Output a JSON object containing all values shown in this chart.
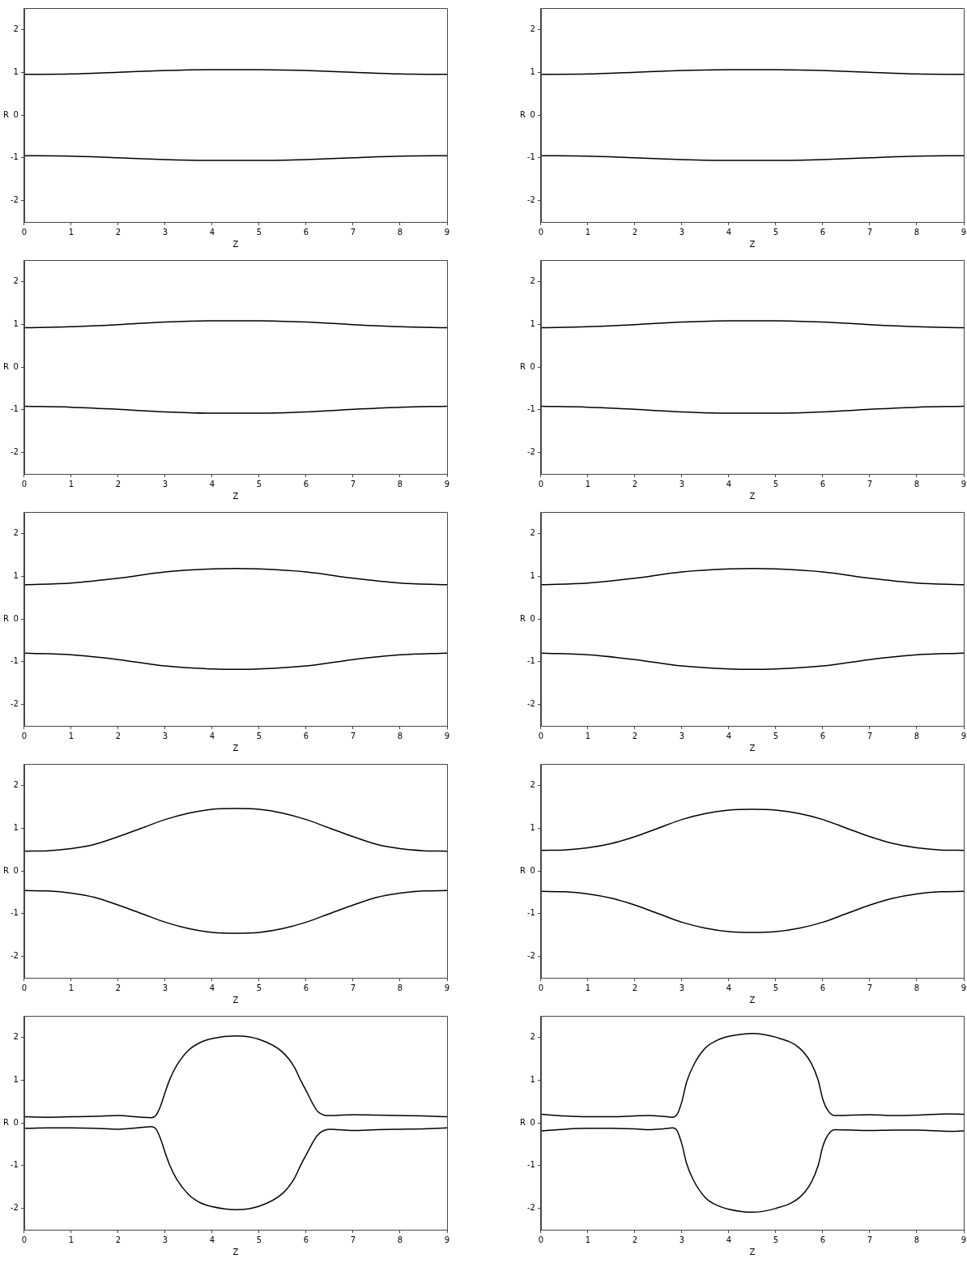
{
  "chart_data": [
    {
      "type": "line",
      "xlabel": "Z",
      "ylabel": "R",
      "xlim": [
        0,
        9
      ],
      "ylim": [
        -2.5,
        2.5
      ],
      "xticks": [
        0,
        1,
        2,
        3,
        4,
        5,
        6,
        7,
        8,
        9
      ],
      "yticks": [
        -2,
        -1,
        0,
        1,
        2
      ],
      "grid": false,
      "legend": false,
      "marker": "none",
      "line_style": "solid",
      "x": [
        0,
        1,
        2,
        3,
        4,
        4.5,
        5,
        6,
        7,
        8,
        9
      ],
      "series": [
        {
          "color": "#000000",
          "values": [
            0.95,
            0.96,
            1.0,
            1.04,
            1.06,
            1.06,
            1.06,
            1.04,
            1.0,
            0.96,
            0.95
          ]
        },
        {
          "color": "#000000",
          "values": [
            -0.95,
            -0.96,
            -1.0,
            -1.04,
            -1.06,
            -1.06,
            -1.06,
            -1.04,
            -1.0,
            -0.96,
            -0.95
          ]
        }
      ]
    },
    {
      "type": "line",
      "xlabel": "Z",
      "ylabel": "R",
      "xlim": [
        0,
        9
      ],
      "ylim": [
        -2.5,
        2.5
      ],
      "xticks": [
        0,
        1,
        2,
        3,
        4,
        5,
        6,
        7,
        8,
        9
      ],
      "yticks": [
        -2,
        -1,
        0,
        1,
        2
      ],
      "grid": false,
      "legend": false,
      "marker": "none",
      "line_style": "solid",
      "x": [
        0,
        1,
        2,
        3,
        4,
        4.5,
        5,
        6,
        7,
        8,
        9
      ],
      "series": [
        {
          "color": "#000000",
          "values": [
            0.95,
            0.96,
            1.0,
            1.04,
            1.06,
            1.06,
            1.06,
            1.04,
            1.0,
            0.96,
            0.95
          ]
        },
        {
          "color": "#000000",
          "values": [
            -0.95,
            -0.96,
            -1.0,
            -1.04,
            -1.06,
            -1.06,
            -1.06,
            -1.04,
            -1.0,
            -0.96,
            -0.95
          ]
        }
      ]
    },
    {
      "type": "line",
      "xlabel": "Z",
      "ylabel": "R",
      "xlim": [
        0,
        9
      ],
      "ylim": [
        -2.5,
        2.5
      ],
      "xticks": [
        0,
        1,
        2,
        3,
        4,
        5,
        6,
        7,
        8,
        9
      ],
      "yticks": [
        -2,
        -1,
        0,
        1,
        2
      ],
      "grid": false,
      "legend": false,
      "marker": "none",
      "line_style": "solid",
      "x": [
        0,
        1,
        2,
        3,
        4,
        4.5,
        5,
        6,
        7,
        8,
        9
      ],
      "series": [
        {
          "color": "#000000",
          "values": [
            0.92,
            0.94,
            0.99,
            1.05,
            1.08,
            1.08,
            1.08,
            1.05,
            0.99,
            0.94,
            0.92
          ]
        },
        {
          "color": "#000000",
          "values": [
            -0.92,
            -0.94,
            -0.99,
            -1.05,
            -1.08,
            -1.08,
            -1.08,
            -1.05,
            -0.99,
            -0.94,
            -0.92
          ]
        }
      ]
    },
    {
      "type": "line",
      "xlabel": "Z",
      "ylabel": "R",
      "xlim": [
        0,
        9
      ],
      "ylim": [
        -2.5,
        2.5
      ],
      "xticks": [
        0,
        1,
        2,
        3,
        4,
        5,
        6,
        7,
        8,
        9
      ],
      "yticks": [
        -2,
        -1,
        0,
        1,
        2
      ],
      "grid": false,
      "legend": false,
      "marker": "none",
      "line_style": "solid",
      "x": [
        0,
        1,
        2,
        3,
        4,
        4.5,
        5,
        6,
        7,
        8,
        9
      ],
      "series": [
        {
          "color": "#000000",
          "values": [
            0.92,
            0.94,
            0.99,
            1.05,
            1.08,
            1.08,
            1.08,
            1.05,
            0.99,
            0.94,
            0.92
          ]
        },
        {
          "color": "#000000",
          "values": [
            -0.92,
            -0.94,
            -0.99,
            -1.05,
            -1.08,
            -1.08,
            -1.08,
            -1.05,
            -0.99,
            -0.94,
            -0.92
          ]
        }
      ]
    },
    {
      "type": "line",
      "xlabel": "Z",
      "ylabel": "R",
      "xlim": [
        0,
        9
      ],
      "ylim": [
        -2.5,
        2.5
      ],
      "xticks": [
        0,
        1,
        2,
        3,
        4,
        5,
        6,
        7,
        8,
        9
      ],
      "yticks": [
        -2,
        -1,
        0,
        1,
        2
      ],
      "grid": false,
      "legend": false,
      "marker": "none",
      "line_style": "solid",
      "x": [
        0,
        1,
        2,
        3,
        4,
        4.5,
        5,
        6,
        7,
        8,
        9
      ],
      "series": [
        {
          "color": "#000000",
          "values": [
            0.8,
            0.84,
            0.95,
            1.1,
            1.17,
            1.18,
            1.17,
            1.1,
            0.95,
            0.84,
            0.8
          ]
        },
        {
          "color": "#000000",
          "values": [
            -0.8,
            -0.84,
            -0.95,
            -1.1,
            -1.17,
            -1.18,
            -1.17,
            -1.1,
            -0.95,
            -0.84,
            -0.8
          ]
        }
      ]
    },
    {
      "type": "line",
      "xlabel": "Z",
      "ylabel": "R",
      "xlim": [
        0,
        9
      ],
      "ylim": [
        -2.5,
        2.5
      ],
      "xticks": [
        0,
        1,
        2,
        3,
        4,
        5,
        6,
        7,
        8,
        9
      ],
      "yticks": [
        -2,
        -1,
        0,
        1,
        2
      ],
      "grid": false,
      "legend": false,
      "marker": "none",
      "line_style": "solid",
      "x": [
        0,
        1,
        2,
        3,
        4,
        4.5,
        5,
        6,
        7,
        8,
        9
      ],
      "series": [
        {
          "color": "#000000",
          "values": [
            0.8,
            0.84,
            0.95,
            1.1,
            1.17,
            1.18,
            1.17,
            1.1,
            0.95,
            0.84,
            0.8
          ]
        },
        {
          "color": "#000000",
          "values": [
            -0.8,
            -0.84,
            -0.95,
            -1.1,
            -1.17,
            -1.18,
            -1.17,
            -1.1,
            -0.95,
            -0.84,
            -0.8
          ]
        }
      ]
    },
    {
      "type": "line",
      "xlabel": "Z",
      "ylabel": "R",
      "xlim": [
        0,
        9
      ],
      "ylim": [
        -2.5,
        2.5
      ],
      "xticks": [
        0,
        1,
        2,
        3,
        4,
        5,
        6,
        7,
        8,
        9
      ],
      "yticks": [
        -2,
        -1,
        0,
        1,
        2
      ],
      "grid": false,
      "legend": false,
      "marker": "none",
      "line_style": "solid",
      "x": [
        0,
        0.5,
        1,
        1.5,
        2,
        2.5,
        3,
        3.5,
        4,
        4.5,
        5,
        5.5,
        6,
        6.5,
        7,
        7.5,
        8,
        8.5,
        9
      ],
      "series": [
        {
          "color": "#000000",
          "values": [
            0.46,
            0.47,
            0.52,
            0.62,
            0.8,
            1.0,
            1.2,
            1.35,
            1.44,
            1.46,
            1.44,
            1.35,
            1.2,
            1.0,
            0.8,
            0.62,
            0.52,
            0.47,
            0.46
          ]
        },
        {
          "color": "#000000",
          "values": [
            -0.46,
            -0.47,
            -0.52,
            -0.62,
            -0.8,
            -1.0,
            -1.2,
            -1.35,
            -1.44,
            -1.46,
            -1.44,
            -1.35,
            -1.2,
            -1.0,
            -0.8,
            -0.62,
            -0.52,
            -0.47,
            -0.46
          ]
        }
      ]
    },
    {
      "type": "line",
      "xlabel": "Z",
      "ylabel": "R",
      "xlim": [
        0,
        9
      ],
      "ylim": [
        -2.5,
        2.5
      ],
      "xticks": [
        0,
        1,
        2,
        3,
        4,
        5,
        6,
        7,
        8,
        9
      ],
      "yticks": [
        -2,
        -1,
        0,
        1,
        2
      ],
      "grid": false,
      "legend": false,
      "marker": "none",
      "line_style": "solid",
      "x": [
        0,
        0.5,
        1,
        1.5,
        2,
        2.5,
        3,
        3.5,
        4,
        4.5,
        5,
        5.5,
        6,
        6.5,
        7,
        7.5,
        8,
        8.5,
        9
      ],
      "series": [
        {
          "color": "#000000",
          "values": [
            0.48,
            0.49,
            0.54,
            0.64,
            0.8,
            1.0,
            1.2,
            1.34,
            1.42,
            1.44,
            1.42,
            1.34,
            1.2,
            1.0,
            0.8,
            0.64,
            0.54,
            0.49,
            0.48
          ]
        },
        {
          "color": "#000000",
          "values": [
            -0.48,
            -0.49,
            -0.54,
            -0.64,
            -0.8,
            -1.0,
            -1.2,
            -1.34,
            -1.42,
            -1.44,
            -1.42,
            -1.34,
            -1.2,
            -1.0,
            -0.8,
            -0.64,
            -0.54,
            -0.49,
            -0.48
          ]
        }
      ]
    },
    {
      "type": "line",
      "xlabel": "Z",
      "ylabel": "R",
      "xlim": [
        0,
        9
      ],
      "ylim": [
        -2.5,
        2.5
      ],
      "xticks": [
        0,
        1,
        2,
        3,
        4,
        5,
        6,
        7,
        8,
        9
      ],
      "yticks": [
        -2,
        -1,
        0,
        1,
        2
      ],
      "grid": false,
      "legend": false,
      "marker": "none",
      "line_style": "solid",
      "x": [
        0,
        0.5,
        1,
        1.5,
        2,
        2.5,
        2.7,
        2.8,
        2.9,
        3,
        3.1,
        3.25,
        3.5,
        3.75,
        4,
        4.5,
        5,
        5.5,
        5.75,
        5.88,
        6,
        6.25,
        6.5,
        7,
        7.5,
        8,
        8.5,
        9
      ],
      "series": [
        {
          "color": "#000000",
          "values": [
            0.14,
            0.13,
            0.14,
            0.15,
            0.17,
            0.13,
            0.12,
            0.17,
            0.39,
            0.72,
            1.02,
            1.35,
            1.7,
            1.88,
            1.97,
            2.03,
            1.95,
            1.65,
            1.3,
            1.0,
            0.75,
            0.26,
            0.17,
            0.19,
            0.18,
            0.17,
            0.16,
            0.14
          ]
        },
        {
          "color": "#000000",
          "values": [
            -0.13,
            -0.12,
            -0.12,
            -0.13,
            -0.15,
            -0.11,
            -0.09,
            -0.14,
            -0.37,
            -0.7,
            -1.0,
            -1.33,
            -1.68,
            -1.87,
            -1.96,
            -2.03,
            -1.95,
            -1.65,
            -1.3,
            -1.0,
            -0.75,
            -0.28,
            -0.15,
            -0.18,
            -0.16,
            -0.15,
            -0.14,
            -0.12
          ]
        }
      ]
    },
    {
      "type": "line",
      "xlabel": "Z",
      "ylabel": "R",
      "xlim": [
        0,
        9
      ],
      "ylim": [
        -2.5,
        2.5
      ],
      "xticks": [
        0,
        1,
        2,
        3,
        4,
        5,
        6,
        7,
        8,
        9
      ],
      "yticks": [
        -2,
        -1,
        0,
        1,
        2
      ],
      "grid": false,
      "legend": false,
      "marker": "none",
      "line_style": "solid",
      "x": [
        0,
        0.5,
        1,
        1.5,
        2,
        2.3,
        2.6,
        2.8,
        2.9,
        3,
        3.1,
        3.25,
        3.5,
        3.75,
        4,
        4.5,
        5,
        5.5,
        5.75,
        5.9,
        6,
        6.1,
        6.25,
        7,
        7.5,
        8,
        8.7,
        9
      ],
      "series": [
        {
          "color": "#000000",
          "values": [
            0.2,
            0.16,
            0.14,
            0.14,
            0.16,
            0.17,
            0.15,
            0.13,
            0.2,
            0.5,
            0.95,
            1.35,
            1.75,
            1.93,
            2.02,
            2.09,
            2.0,
            1.75,
            1.4,
            1.0,
            0.55,
            0.3,
            0.17,
            0.19,
            0.17,
            0.18,
            0.21,
            0.2
          ]
        },
        {
          "color": "#000000",
          "values": [
            -0.19,
            -0.15,
            -0.13,
            -0.13,
            -0.14,
            -0.16,
            -0.14,
            -0.12,
            -0.19,
            -0.5,
            -0.95,
            -1.35,
            -1.75,
            -1.93,
            -2.02,
            -2.09,
            -2.0,
            -1.75,
            -1.4,
            -1.0,
            -0.55,
            -0.3,
            -0.16,
            -0.18,
            -0.17,
            -0.17,
            -0.2,
            -0.19
          ]
        }
      ]
    }
  ]
}
